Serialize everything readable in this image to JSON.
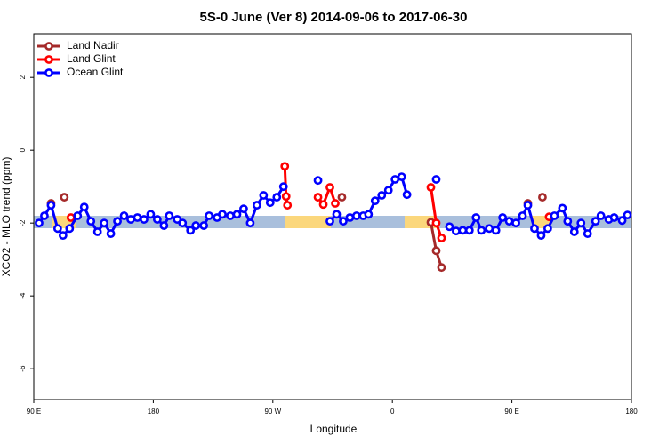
{
  "chart_data": {
    "type": "line",
    "title": "5S-0 June (Ver 8)   2014-09-06 to 2017-06-30",
    "x_label": "Longitude",
    "y_label": "XCO2 - MLO trend (ppm)",
    "xlim": [
      90,
      540
    ],
    "ylim": [
      -6.85,
      3.2
    ],
    "xticks": [
      {
        "value": 90,
        "label": "90 E"
      },
      180,
      {
        "value": 270,
        "label": "90 W"
      },
      {
        "value": 360,
        "label": "0"
      },
      {
        "value": 450,
        "label": "90 E"
      },
      {
        "value": 540,
        "label": "180"
      }
    ],
    "yticks": [
      -6,
      -4,
      -2,
      0,
      2
    ],
    "legend": "top-left",
    "series": [
      {
        "name": "Land Nadir",
        "color": "#a52a2a",
        "x": [
          103,
          null,
          113,
          null,
          322,
          null,
          389,
          393,
          397,
          null,
          462,
          null,
          473
        ],
        "values": [
          -1.46,
          null,
          -1.29,
          null,
          -1.29,
          null,
          -1.98,
          -2.76,
          -3.22,
          null,
          -1.46,
          null,
          -1.29
        ]
      },
      {
        "name": "Land Glint",
        "color": "#ff0000",
        "x": [
          118,
          null,
          279,
          280,
          281,
          null,
          304,
          308,
          313,
          317,
          null,
          389,
          393,
          397,
          null,
          478
        ],
        "values": [
          -1.85,
          null,
          -0.44,
          -1.27,
          -1.51,
          null,
          -1.29,
          -1.49,
          -1.02,
          -1.46,
          null,
          -1.02,
          -2.0,
          -2.41,
          null,
          -1.83
        ]
      },
      {
        "name": "Ocean Glint",
        "color": "#0000ff",
        "x": [
          94,
          98,
          103,
          108,
          112,
          117,
          123,
          128,
          133,
          138,
          143,
          148,
          153,
          158,
          163,
          168,
          173,
          178,
          183,
          188,
          192,
          198,
          202,
          208,
          212,
          218,
          222,
          228,
          232,
          238,
          243,
          248,
          253,
          258,
          263,
          268,
          273,
          278,
          null,
          304,
          null,
          313,
          318,
          323,
          328,
          333,
          338,
          342,
          347,
          352,
          357,
          362,
          367,
          371,
          null,
          393,
          null,
          403,
          408,
          413,
          418,
          423,
          427,
          433,
          438,
          443,
          448,
          453,
          458,
          462,
          467,
          472,
          477,
          482,
          488,
          492,
          497,
          502,
          507,
          513,
          517,
          523,
          527,
          533,
          537
        ],
        "values": [
          -2.0,
          -1.8,
          -1.51,
          -2.15,
          -2.34,
          -2.15,
          -1.8,
          -1.56,
          -1.95,
          -2.24,
          -2.0,
          -2.29,
          -1.95,
          -1.8,
          -1.9,
          -1.85,
          -1.9,
          -1.76,
          -1.9,
          -2.07,
          -1.8,
          -1.9,
          -2.0,
          -2.2,
          -2.07,
          -2.07,
          -1.8,
          -1.85,
          -1.76,
          -1.8,
          -1.76,
          -1.61,
          -2.0,
          -1.51,
          -1.24,
          -1.44,
          -1.29,
          -1.0,
          null,
          -0.83,
          null,
          -1.95,
          -1.76,
          -1.95,
          -1.85,
          -1.8,
          -1.8,
          -1.76,
          -1.39,
          -1.24,
          -1.1,
          -0.8,
          -0.73,
          -1.22,
          null,
          -0.8,
          null,
          -2.1,
          -2.22,
          -2.2,
          -2.2,
          -1.85,
          -2.2,
          -2.15,
          -2.2,
          -1.85,
          -1.95,
          -2.0,
          -1.8,
          -1.51,
          -2.15,
          -2.34,
          -2.15,
          -1.8,
          -1.59,
          -1.95,
          -2.24,
          -2.0,
          -2.29,
          -1.95,
          -1.8,
          -1.9,
          -1.85,
          -1.93,
          -1.78
        ]
      }
    ]
  }
}
